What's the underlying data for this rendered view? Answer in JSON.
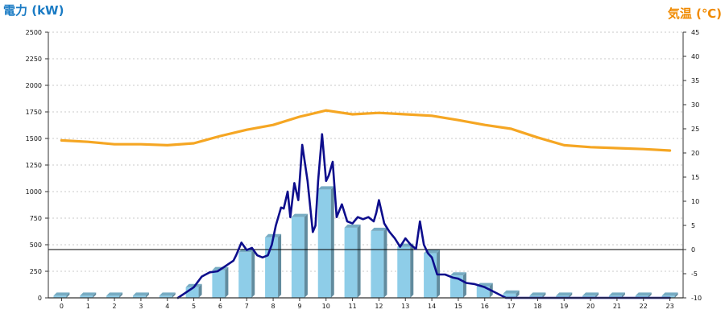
{
  "chart_data": {
    "type": "bar+line",
    "left_axis": {
      "title": "電力 (kW)",
      "color": "#1a7bc4",
      "min": 0,
      "max": 2500,
      "step": 250
    },
    "right_axis": {
      "title": "気温 (℃)",
      "color": "#f08a00",
      "min": -10,
      "max": 45,
      "step": 5
    },
    "categories": [
      "0",
      "1",
      "2",
      "3",
      "4",
      "5",
      "6",
      "7",
      "8",
      "9",
      "10",
      "11",
      "12",
      "13",
      "14",
      "15",
      "16",
      "17",
      "18",
      "19",
      "20",
      "21",
      "22",
      "23"
    ],
    "grid": true,
    "series": [
      {
        "kind": "bar",
        "axis": "left",
        "color": "#8ecde8",
        "values": [
          20,
          20,
          20,
          20,
          20,
          100,
          260,
          430,
          570,
          760,
          1020,
          660,
          630,
          480,
          420,
          210,
          110,
          40,
          20,
          20,
          20,
          20,
          20,
          20
        ]
      },
      {
        "kind": "line",
        "axis": "left",
        "color": "#0d0d8c",
        "x": [
          4.4,
          4.7,
          5.0,
          5.3,
          5.6,
          5.9,
          6.2,
          6.5,
          6.6,
          6.8,
          7.0,
          7.2,
          7.4,
          7.6,
          7.8,
          7.95,
          8.1,
          8.3,
          8.4,
          8.55,
          8.65,
          8.8,
          8.95,
          9.1,
          9.3,
          9.5,
          9.6,
          9.7,
          9.85,
          10.0,
          10.1,
          10.25,
          10.4,
          10.6,
          10.8,
          11.0,
          11.2,
          11.4,
          11.6,
          11.8,
          11.9,
          12.0,
          12.2,
          12.4,
          12.6,
          12.8,
          13.0,
          13.2,
          13.4,
          13.55,
          13.7,
          13.85,
          14.0,
          14.2,
          14.5,
          14.8,
          15.0,
          15.3,
          15.6,
          16.0,
          16.4,
          16.8,
          17.0,
          17.5,
          18.0,
          19.0,
          20.0,
          21.0,
          22.0,
          23.0
        ],
        "y": [
          0,
          50,
          100,
          200,
          240,
          250,
          300,
          350,
          400,
          520,
          450,
          470,
          400,
          380,
          400,
          500,
          680,
          850,
          840,
          1000,
          760,
          1080,
          920,
          1440,
          1100,
          620,
          680,
          1100,
          1540,
          1100,
          1150,
          1280,
          760,
          880,
          720,
          700,
          760,
          740,
          760,
          720,
          800,
          920,
          700,
          620,
          560,
          480,
          560,
          500,
          460,
          720,
          500,
          420,
          380,
          220,
          220,
          190,
          180,
          140,
          130,
          100,
          50,
          0,
          0,
          0,
          0,
          0,
          0,
          0,
          0,
          0
        ]
      },
      {
        "kind": "line",
        "axis": "right",
        "color": "#f5a623",
        "values": [
          22.6,
          22.3,
          21.8,
          21.8,
          21.6,
          22.0,
          23.5,
          24.8,
          25.8,
          27.5,
          28.8,
          28.0,
          28.3,
          28.0,
          27.7,
          26.8,
          25.8,
          25.0,
          23.2,
          21.6,
          21.2,
          21.0,
          20.8,
          20.5
        ]
      }
    ]
  }
}
